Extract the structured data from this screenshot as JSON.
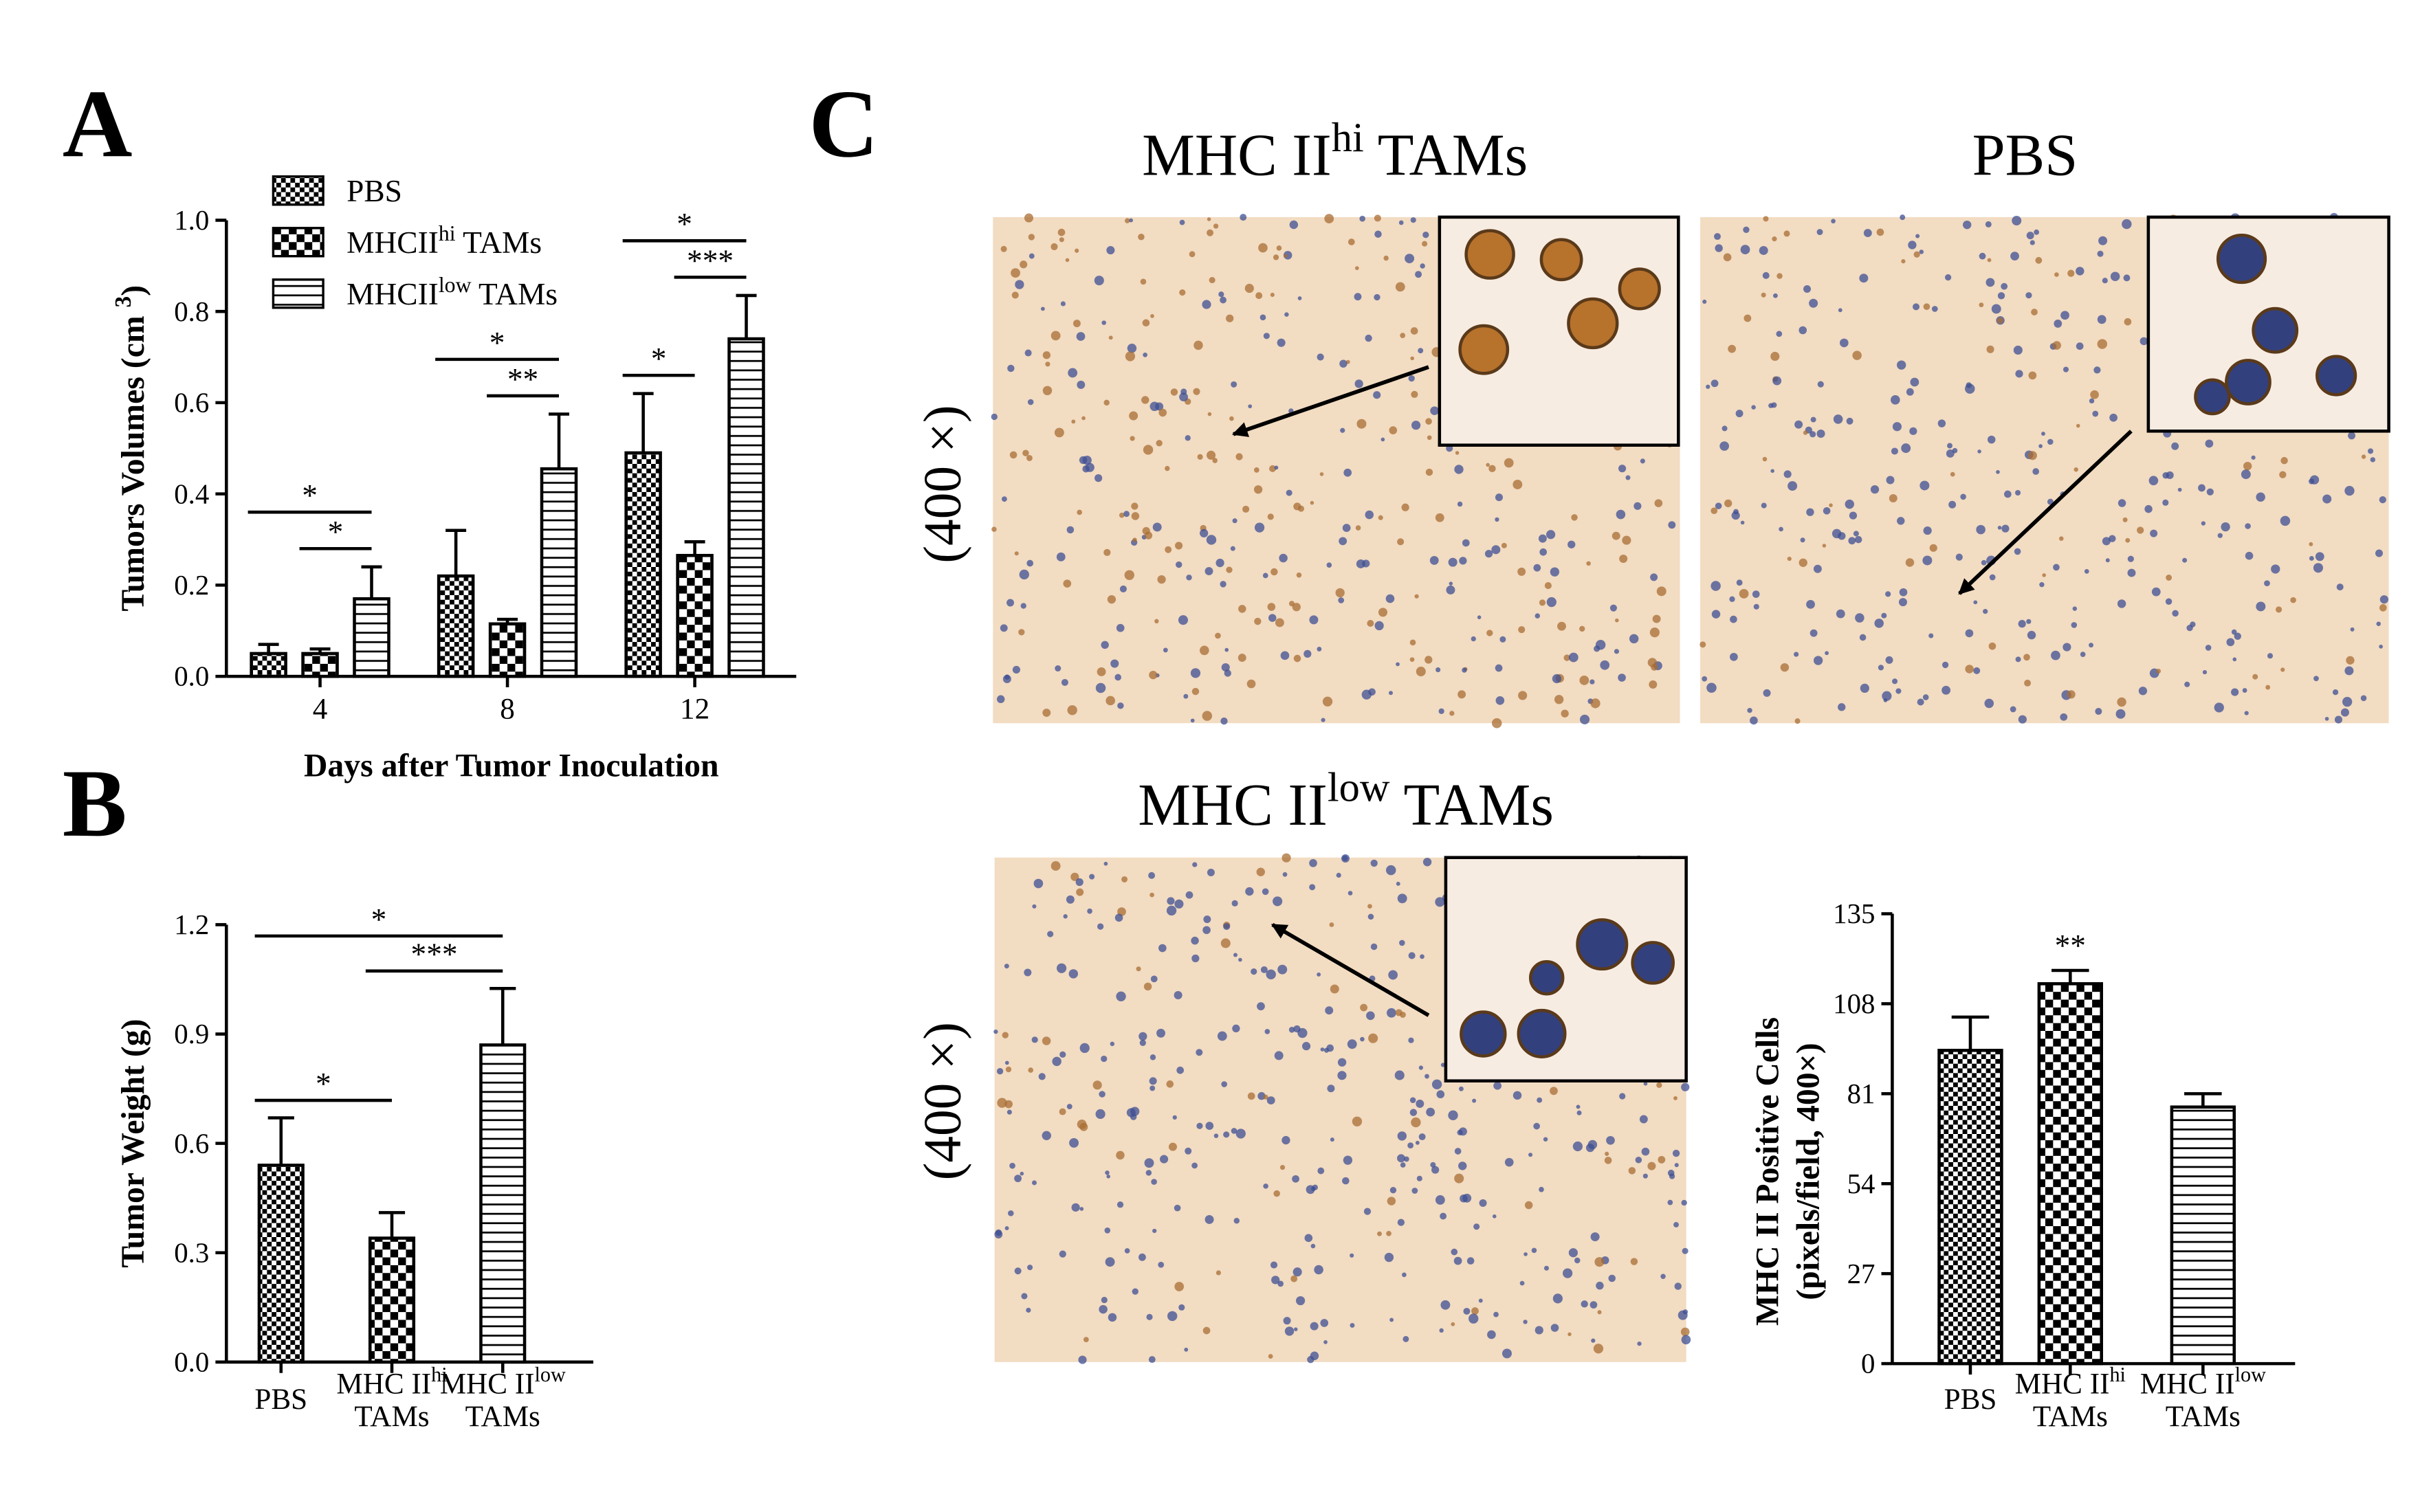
{
  "panel_labels": [
    "A",
    "B",
    "C"
  ],
  "micrographs": [
    {
      "title": [
        "MHC II",
        "hi",
        " TAMs"
      ]
    },
    {
      "title": "PBS"
    },
    {
      "title": [
        "MHC II",
        "low",
        " TAMs"
      ]
    }
  ],
  "row_labels": [
    "(400 ×)",
    "(400 ×)"
  ],
  "chart_data": [
    {
      "type": "grouped-bar",
      "ylabel": [
        "Tumors Volumes (cm ",
        "3",
        ")"
      ],
      "xlabel": "Days after Tumor Inoculation",
      "categories": [
        "4",
        "8",
        "12"
      ],
      "series": [
        {
          "name": "PBS",
          "pattern": "fine-checker",
          "values": [
            0.05,
            0.22,
            0.49
          ],
          "errors": [
            0.02,
            0.1,
            0.13
          ]
        },
        {
          "name": [
            "MHCII",
            "hi",
            " TAMs"
          ],
          "pattern": "coarse-checker",
          "values": [
            0.05,
            0.115,
            0.265
          ],
          "errors": [
            0.01,
            0.01,
            0.03
          ]
        },
        {
          "name": [
            "MHCII",
            "low",
            " TAMs"
          ],
          "pattern": "h-stripes",
          "values": [
            0.17,
            0.455,
            0.74
          ],
          "errors": [
            0.07,
            0.12,
            0.095
          ]
        }
      ],
      "ylim": [
        0,
        1
      ],
      "yticks": [
        {
          "value": 0,
          "label": "0.0"
        },
        {
          "value": 0.2,
          "label": "0.2"
        },
        {
          "value": 0.4,
          "label": "0.4"
        },
        {
          "value": 0.6,
          "label": "0.6"
        },
        {
          "value": 0.8,
          "label": "0.8"
        },
        {
          "value": 1,
          "label": "1.0"
        }
      ],
      "annotations": [
        {
          "text": "*",
          "category": 0,
          "between": [
            1,
            2
          ]
        },
        {
          "text": "*",
          "category": 0,
          "between": [
            0,
            2
          ]
        },
        {
          "text": "**",
          "category": 1,
          "between": [
            1,
            2
          ]
        },
        {
          "text": "*",
          "category": 1,
          "between": [
            0,
            2
          ]
        },
        {
          "text": "*",
          "category": 2,
          "between": [
            0,
            1
          ]
        },
        {
          "text": "***",
          "category": 2,
          "between": [
            1,
            2
          ]
        },
        {
          "text": "*",
          "category": 2,
          "between": [
            0,
            2
          ]
        }
      ]
    },
    {
      "type": "bar",
      "ylabel": "Tumor Weight (g)",
      "categories": [
        "PBS",
        [
          "MHC II",
          "hi",
          "TAMs"
        ],
        [
          "MHC II",
          "low",
          "TAMs"
        ]
      ],
      "values": [
        0.54,
        0.34,
        0.87
      ],
      "errors": [
        0.13,
        0.07,
        0.155
      ],
      "patterns": [
        "fine-checker",
        "coarse-checker",
        "h-stripes"
      ],
      "ylim": [
        0,
        1.2
      ],
      "yticks": [
        {
          "value": 0,
          "label": "0.0"
        },
        {
          "value": 0.3,
          "label": "0.3"
        },
        {
          "value": 0.6,
          "label": "0.6"
        },
        {
          "value": 0.9,
          "label": "0.9"
        },
        {
          "value": 1.2,
          "label": "1.2"
        }
      ],
      "annotations": [
        {
          "text": "*",
          "between": [
            0,
            1
          ]
        },
        {
          "text": "***",
          "between": [
            1,
            2
          ]
        },
        {
          "text": "*",
          "between": [
            0,
            2
          ]
        }
      ]
    },
    {
      "type": "bar",
      "ylabel_lines": [
        "MHC II Positive Cells",
        "(pixels/field, 400×)"
      ],
      "categories": [
        "PBS",
        [
          "MHC II",
          "hi",
          "TAMs"
        ],
        [
          "MHC II",
          "low",
          "TAMs"
        ]
      ],
      "values": [
        94,
        114,
        77
      ],
      "errors": [
        10,
        4,
        4
      ],
      "patterns": [
        "fine-checker",
        "coarse-checker",
        "h-stripes"
      ],
      "ylim": [
        0,
        135
      ],
      "yticks": [
        0,
        27,
        54,
        81,
        108,
        135
      ],
      "annotations": [
        {
          "text": "**",
          "between": [
            1,
            1
          ]
        }
      ]
    }
  ]
}
